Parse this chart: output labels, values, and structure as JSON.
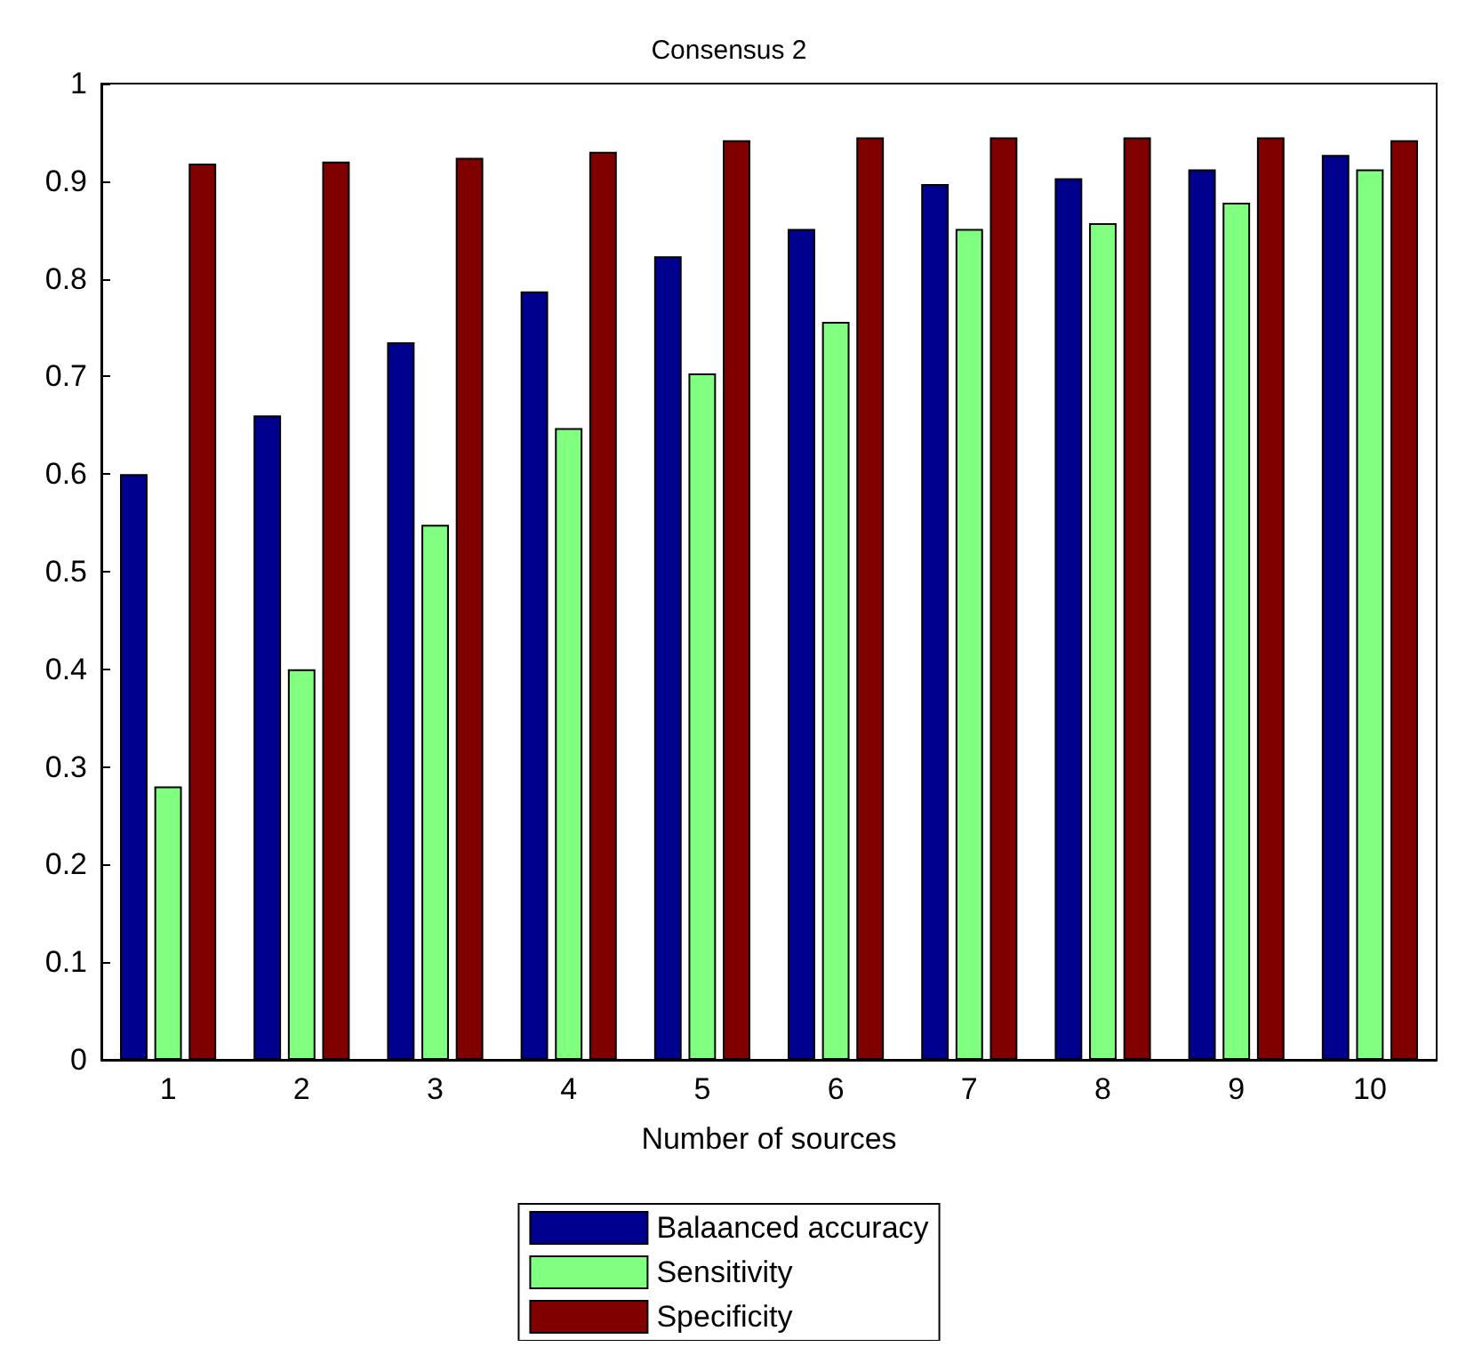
{
  "chart_data": {
    "type": "bar",
    "title": "Consensus 2",
    "xlabel": "Number of sources",
    "categories": [
      "1",
      "2",
      "3",
      "4",
      "5",
      "6",
      "7",
      "8",
      "9",
      "10"
    ],
    "series": [
      {
        "name": "Balaanced accuracy",
        "color": "#00008f",
        "values": [
          0.6,
          0.66,
          0.735,
          0.787,
          0.823,
          0.851,
          0.897,
          0.903,
          0.912,
          0.927
        ]
      },
      {
        "name": "Sensitivity",
        "color": "#80ff80",
        "values": [
          0.28,
          0.4,
          0.548,
          0.647,
          0.703,
          0.756,
          0.851,
          0.857,
          0.878,
          0.912
        ]
      },
      {
        "name": "Specificity",
        "color": "#800000",
        "values": [
          0.918,
          0.92,
          0.924,
          0.93,
          0.942,
          0.945,
          0.945,
          0.945,
          0.945,
          0.942
        ]
      }
    ],
    "ylim": [
      0,
      1
    ],
    "yticks": [
      0,
      0.1,
      0.2,
      0.3,
      0.4,
      0.5,
      0.6,
      0.7,
      0.8,
      0.9,
      1
    ],
    "grid": false,
    "legend": "bottom"
  }
}
